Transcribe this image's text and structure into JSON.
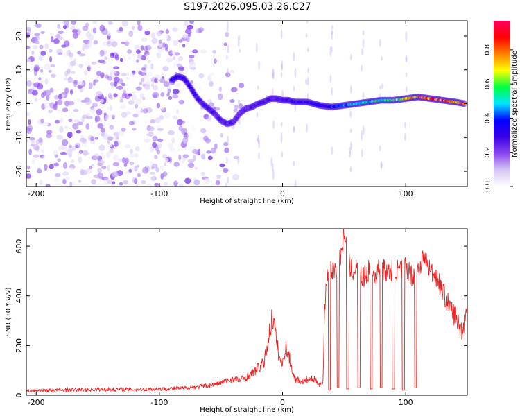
{
  "figure": {
    "title": "S197.2026.095.03.26.C27"
  },
  "chart_data": [
    {
      "type": "heatmap",
      "title": "S197.2026.095.03.26.C27",
      "xlabel": "Height of straight line (km)",
      "ylabel": "Frequency (Hz)",
      "xlim": [
        -208,
        150
      ],
      "ylim": [
        -24.5,
        24.5
      ],
      "x_ticks": [
        -200,
        -100,
        0,
        100
      ],
      "y_ticks": [
        -20,
        -10,
        0,
        10,
        20
      ],
      "colorbar": {
        "label": "Normalized spectral amplitude",
        "range": [
          0,
          0.97
        ],
        "ticks": [
          0,
          0.2,
          0.4,
          0.6,
          0.8
        ],
        "colormap": [
          "#ffffff",
          "#d6c6f6",
          "#8a46ec",
          "#3a00e6",
          "#0000ff",
          "#00e5ff",
          "#00ff40",
          "#ffff00",
          "#ff8000",
          "#ff0000",
          "#ff0060"
        ]
      },
      "ridge": [
        {
          "x": -90,
          "y": 7
        },
        {
          "x": -85,
          "y": 8
        },
        {
          "x": -80,
          "y": 7.5
        },
        {
          "x": -75,
          "y": 5
        },
        {
          "x": -70,
          "y": 2
        },
        {
          "x": -65,
          "y": 0
        },
        {
          "x": -60,
          "y": -1.5
        },
        {
          "x": -55,
          "y": -3
        },
        {
          "x": -50,
          "y": -5
        },
        {
          "x": -45,
          "y": -6
        },
        {
          "x": -40,
          "y": -5.5
        },
        {
          "x": -35,
          "y": -3
        },
        {
          "x": -30,
          "y": -1.5
        },
        {
          "x": -25,
          "y": -1
        },
        {
          "x": -20,
          "y": 0
        },
        {
          "x": -15,
          "y": 0.5
        },
        {
          "x": -10,
          "y": 1.5
        },
        {
          "x": -5,
          "y": 1.5
        },
        {
          "x": 0,
          "y": 1
        },
        {
          "x": 5,
          "y": 1
        },
        {
          "x": 10,
          "y": 0.5
        },
        {
          "x": 20,
          "y": 0.5
        },
        {
          "x": 30,
          "y": -0.5
        },
        {
          "x": 40,
          "y": -1
        },
        {
          "x": 50,
          "y": -0.5
        },
        {
          "x": 60,
          "y": 0
        },
        {
          "x": 70,
          "y": 0.5
        },
        {
          "x": 80,
          "y": 1
        },
        {
          "x": 90,
          "y": 1
        },
        {
          "x": 100,
          "y": 1.5
        },
        {
          "x": 110,
          "y": 2
        },
        {
          "x": 120,
          "y": 1.5
        },
        {
          "x": 130,
          "y": 1
        },
        {
          "x": 140,
          "y": 0.5
        },
        {
          "x": 148,
          "y": 0
        }
      ],
      "ridge_amplitude": [
        {
          "x": -90,
          "v": 0.35
        },
        {
          "x": -60,
          "v": 0.3
        },
        {
          "x": -30,
          "v": 0.25
        },
        {
          "x": 0,
          "v": 0.3
        },
        {
          "x": 30,
          "v": 0.35
        },
        {
          "x": 60,
          "v": 0.55
        },
        {
          "x": 80,
          "v": 0.6
        },
        {
          "x": 100,
          "v": 0.7
        },
        {
          "x": 110,
          "v": 0.85
        },
        {
          "x": 125,
          "v": 0.95
        },
        {
          "x": 135,
          "v": 0.85
        },
        {
          "x": 148,
          "v": 0.9
        }
      ]
    },
    {
      "type": "line",
      "xlabel": "Height of straight line (km)",
      "ylabel": "SNR (10 * v/v)",
      "xlim": [
        -208,
        150
      ],
      "ylim": [
        0,
        670
      ],
      "x_ticks": [
        -200,
        -100,
        0,
        100
      ],
      "y_ticks": [
        0,
        200,
        400,
        600
      ],
      "series": [
        {
          "name": "SNR",
          "color": "#ee2222",
          "x": [
            -208,
            -180,
            -150,
            -120,
            -100,
            -80,
            -60,
            -50,
            -40,
            -35,
            -30,
            -25,
            -20,
            -15,
            -10,
            -8,
            -5,
            -3,
            -1,
            0,
            2,
            5,
            8,
            10,
            15,
            20,
            25,
            30,
            33,
            34,
            35,
            36,
            40,
            45,
            48,
            50,
            52,
            55,
            60,
            65,
            70,
            75,
            80,
            85,
            90,
            95,
            100,
            105,
            110,
            115,
            120,
            125,
            130,
            135,
            140,
            145,
            148,
            150
          ],
          "values": [
            15,
            18,
            20,
            20,
            22,
            25,
            35,
            45,
            60,
            55,
            65,
            80,
            100,
            120,
            250,
            300,
            200,
            150,
            120,
            110,
            180,
            150,
            90,
            60,
            50,
            55,
            60,
            40,
            45,
            340,
            420,
            480,
            500,
            520,
            580,
            660,
            590,
            500,
            510,
            470,
            500,
            480,
            520,
            490,
            510,
            500,
            520,
            480,
            510,
            560,
            500,
            480,
            420,
            360,
            320,
            260,
            300,
            380
          ]
        }
      ],
      "dips": [
        {
          "x": 38,
          "y": 20
        },
        {
          "x": 45,
          "y": 30
        },
        {
          "x": 53,
          "y": 25
        },
        {
          "x": 62,
          "y": 30
        },
        {
          "x": 72,
          "y": 25
        },
        {
          "x": 80,
          "y": 30
        },
        {
          "x": 90,
          "y": 25
        },
        {
          "x": 98,
          "y": 20
        },
        {
          "x": 108,
          "y": 30
        }
      ]
    }
  ]
}
